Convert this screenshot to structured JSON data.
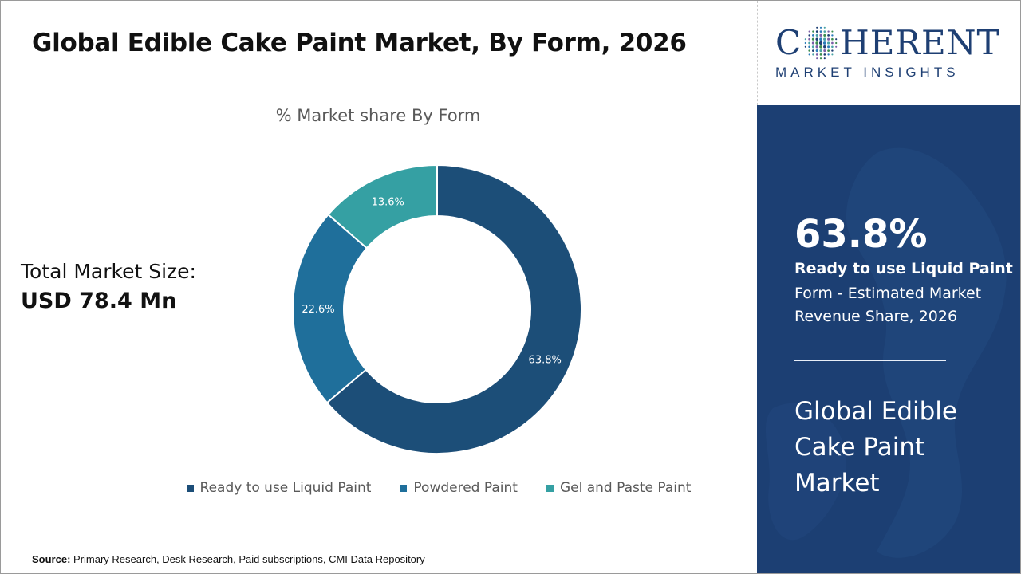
{
  "page": {
    "title": "Global Edible Cake Paint Market, By Form, 2026",
    "total_label": "Total Market Size:",
    "total_value": "USD 78.4 Mn",
    "source_label": "Source:",
    "source_text": "Primary Research, Desk Research, Paid subscriptions, CMI Data Repository"
  },
  "logo": {
    "left_text": "C",
    "right_text": "HERENT",
    "subtitle": "MARKET INSIGHTS"
  },
  "side_panel": {
    "kpi_value": "63.8%",
    "kpi_label": "Ready to use Liquid Paint",
    "kpi_desc": "Form - Estimated Market Revenue Share, 2026",
    "title": "Global Edible Cake Paint Market"
  },
  "chart_data": {
    "type": "pie",
    "variant": "donut",
    "title": "% Market share By Form",
    "categories": [
      "Ready to use Liquid Paint",
      "Powdered Paint",
      "Gel and Paste Paint"
    ],
    "values": [
      63.8,
      22.6,
      13.6
    ],
    "labels": [
      "63.8%",
      "22.6%",
      "13.6%"
    ],
    "colors": [
      "#1c4e78",
      "#1f6f9b",
      "#35a0a3"
    ],
    "legend_position": "bottom"
  }
}
